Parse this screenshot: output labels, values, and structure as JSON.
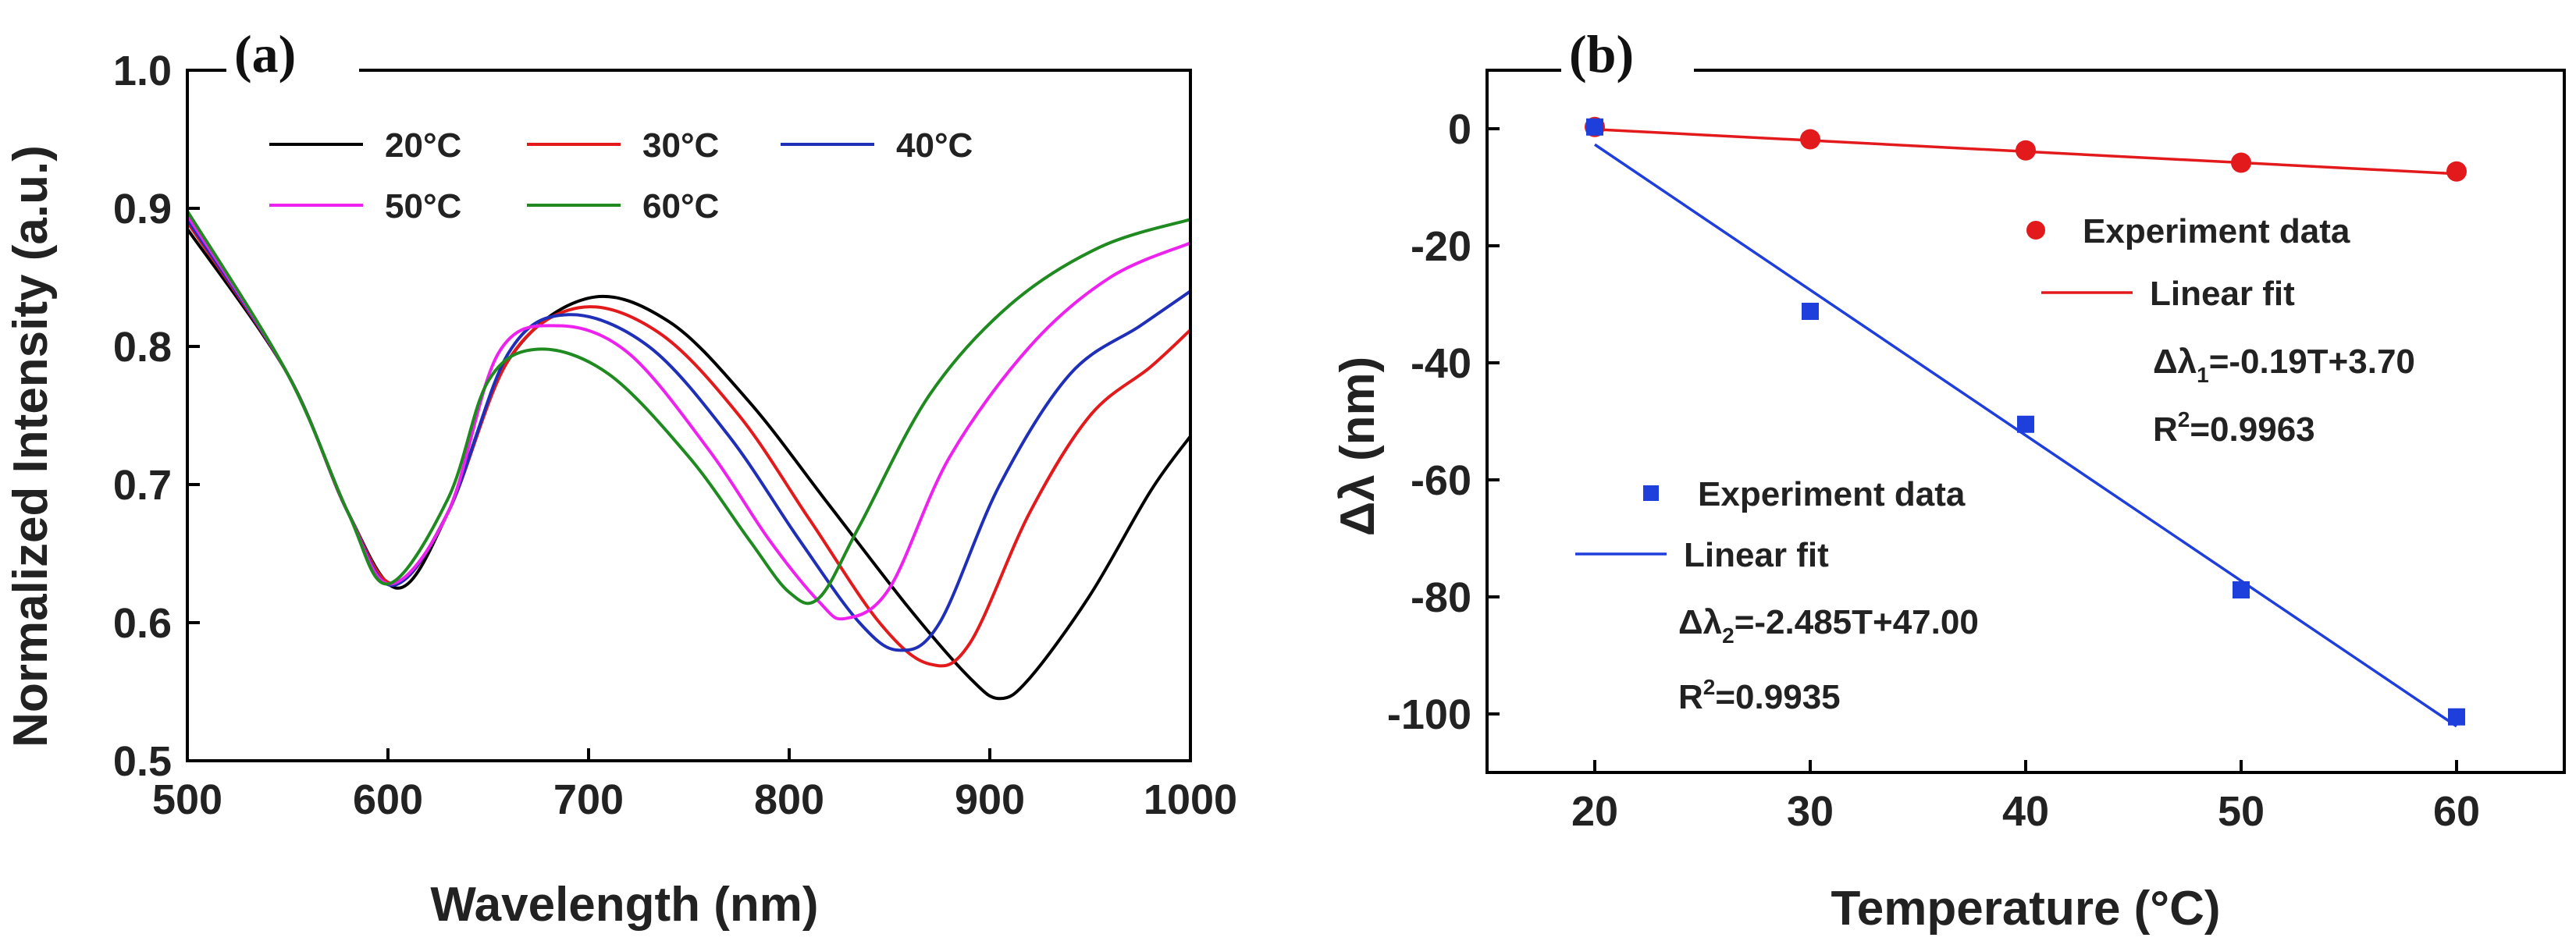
{
  "chart_data": [
    {
      "panel_label": "(a)",
      "type": "line",
      "title": "",
      "xlabel": "Wavelength (nm)",
      "ylabel": "Normalized Intensity (a.u.)",
      "xlim": [
        500,
        1000
      ],
      "ylim": [
        0.5,
        1.0
      ],
      "xticks": [
        500,
        600,
        700,
        800,
        900,
        1000
      ],
      "yticks": [
        0.5,
        0.6,
        0.7,
        0.8,
        0.9,
        1.0
      ],
      "ytick_labels": [
        "0.5",
        "0.6",
        "0.7",
        "0.8",
        "0.9",
        "1.0"
      ],
      "grid": false,
      "legend_position": "top",
      "series": [
        {
          "name": "20°C",
          "color": "#000000",
          "x": [
            500,
            550,
            580,
            605,
            630,
            660,
            700,
            740,
            780,
            820,
            860,
            890,
            905,
            920,
            950,
            980,
            1000
          ],
          "y": [
            0.885,
            0.78,
            0.68,
            0.625,
            0.68,
            0.79,
            0.835,
            0.818,
            0.76,
            0.685,
            0.61,
            0.56,
            0.545,
            0.56,
            0.62,
            0.695,
            0.735
          ]
        },
        {
          "name": "30°C",
          "color": "#e31a1c",
          "x": [
            500,
            550,
            580,
            603,
            630,
            660,
            695,
            735,
            775,
            810,
            845,
            870,
            890,
            920,
            950,
            980,
            1000
          ],
          "y": [
            0.89,
            0.78,
            0.68,
            0.628,
            0.68,
            0.79,
            0.828,
            0.81,
            0.75,
            0.675,
            0.6,
            0.57,
            0.585,
            0.68,
            0.75,
            0.785,
            0.812
          ]
        },
        {
          "name": "40°C",
          "color": "#1f2fb8",
          "x": [
            500,
            550,
            580,
            602,
            630,
            660,
            690,
            730,
            770,
            805,
            835,
            855,
            875,
            905,
            940,
            975,
            1000
          ],
          "y": [
            0.892,
            0.78,
            0.68,
            0.627,
            0.68,
            0.795,
            0.823,
            0.8,
            0.735,
            0.66,
            0.6,
            0.58,
            0.6,
            0.7,
            0.78,
            0.815,
            0.84
          ]
        },
        {
          "name": "50°C",
          "color": "#ee22ee",
          "x": [
            500,
            550,
            580,
            601,
            630,
            655,
            685,
            720,
            760,
            790,
            815,
            828,
            850,
            880,
            920,
            960,
            1000
          ],
          "y": [
            0.895,
            0.78,
            0.68,
            0.628,
            0.68,
            0.795,
            0.815,
            0.795,
            0.725,
            0.66,
            0.615,
            0.603,
            0.625,
            0.72,
            0.8,
            0.85,
            0.875
          ]
        },
        {
          "name": "60°C",
          "color": "#1f8a1f",
          "x": [
            500,
            550,
            580,
            600,
            630,
            650,
            675,
            710,
            750,
            780,
            800,
            815,
            835,
            870,
            910,
            955,
            1000
          ],
          "y": [
            0.898,
            0.78,
            0.68,
            0.628,
            0.69,
            0.775,
            0.798,
            0.78,
            0.72,
            0.66,
            0.622,
            0.618,
            0.67,
            0.765,
            0.83,
            0.872,
            0.892
          ]
        }
      ]
    },
    {
      "panel_label": "(b)",
      "type": "scatter",
      "title": "",
      "xlabel": "Temperature (°C)",
      "ylabel": "Δλ (nm)",
      "xlim": [
        15,
        65
      ],
      "ylim": [
        -110,
        10
      ],
      "xticks": [
        20,
        30,
        40,
        50,
        60
      ],
      "yticks": [
        0,
        -20,
        -40,
        -60,
        -80,
        -100
      ],
      "grid": false,
      "series": [
        {
          "name": "Experiment data",
          "marker": "circle",
          "color": "#e31a1c",
          "x": [
            20,
            30,
            40,
            50,
            60
          ],
          "y": [
            0.3,
            -1.8,
            -3.7,
            -5.8,
            -7.3
          ],
          "fit": {
            "name": "Linear fit",
            "slope": -0.19,
            "intercept": 3.7,
            "x_range": [
              20,
              60
            ],
            "eq_prefix": "Δλ",
            "eq_sub": "1",
            "eq_rest": "=-0.19T+3.70",
            "r2_prefix": "R",
            "r2_sup": "2",
            "r2_rest": "=0.9963"
          }
        },
        {
          "name": "Experiment data",
          "marker": "square",
          "color": "#1f3fdd",
          "x": [
            20,
            30,
            40,
            50,
            60
          ],
          "y": [
            0.3,
            -31.2,
            -50.5,
            -78.8,
            -100.5
          ],
          "fit": {
            "name": "Linear fit",
            "slope": -2.485,
            "intercept": 47.0,
            "x_range": [
              20,
              60
            ],
            "eq_prefix": "Δλ",
            "eq_sub": "2",
            "eq_rest": "=-2.485T+47.00",
            "r2_prefix": "R",
            "r2_sup": "2",
            "r2_rest": "=0.9935"
          }
        }
      ]
    }
  ]
}
